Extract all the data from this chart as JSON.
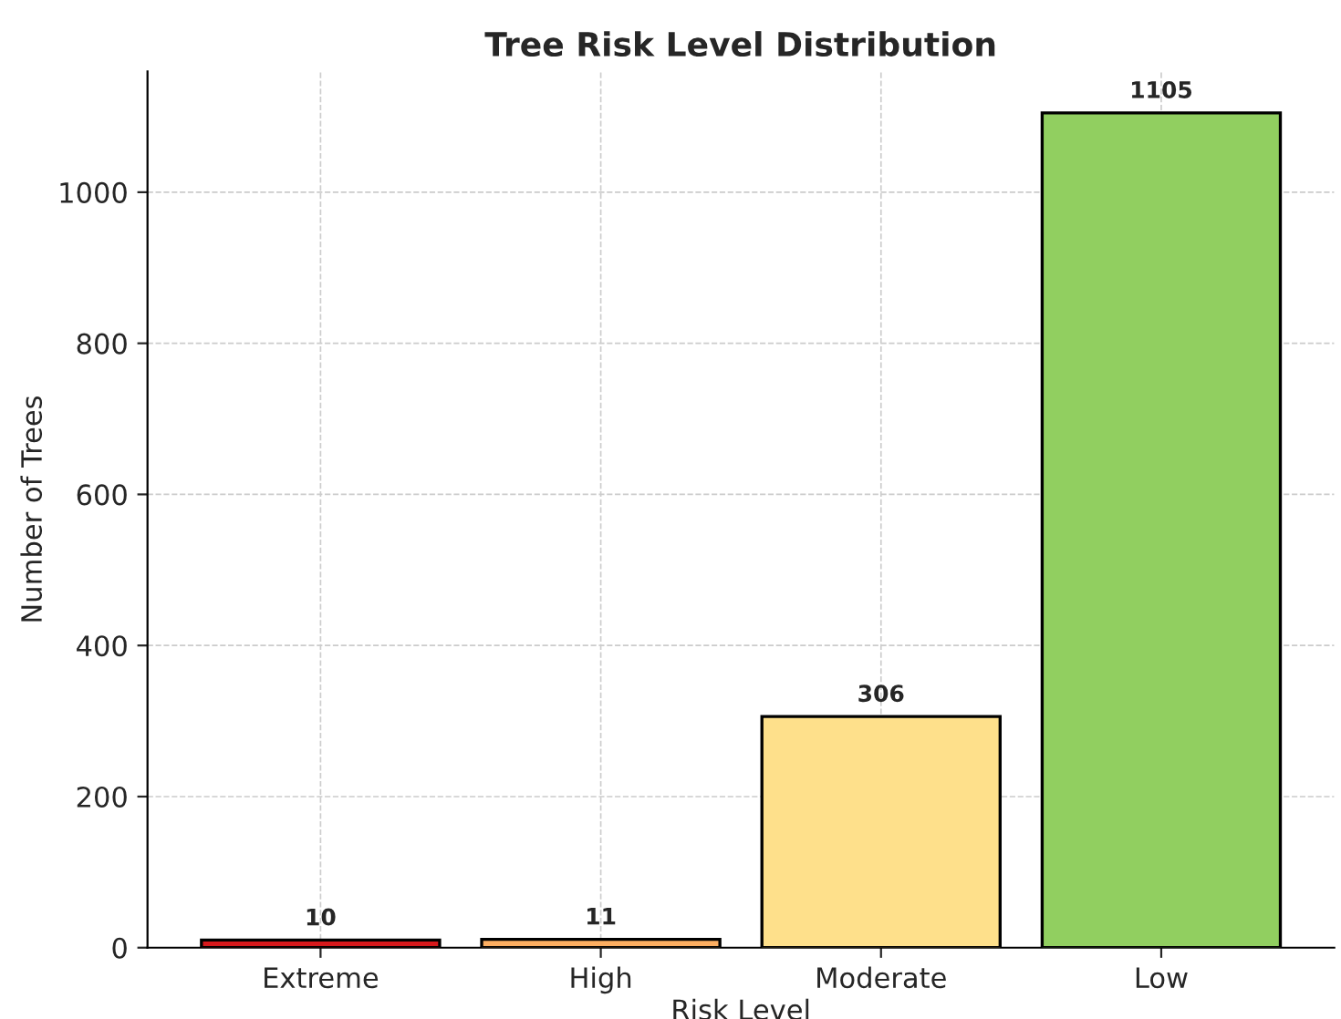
{
  "chart_data": {
    "type": "bar",
    "title": "Tree Risk Level Distribution",
    "xlabel": "Risk Level",
    "ylabel": "Number of Trees",
    "categories": [
      "Extreme",
      "High",
      "Moderate",
      "Low"
    ],
    "values": [
      10,
      11,
      306,
      1105
    ],
    "colors": [
      "#d7191c",
      "#fdae61",
      "#fee08b",
      "#91cf60"
    ],
    "ylim": [
      0,
      1160
    ],
    "yticks": [
      0,
      200,
      400,
      600,
      800,
      1000
    ],
    "grid": true,
    "data_labels": true
  }
}
